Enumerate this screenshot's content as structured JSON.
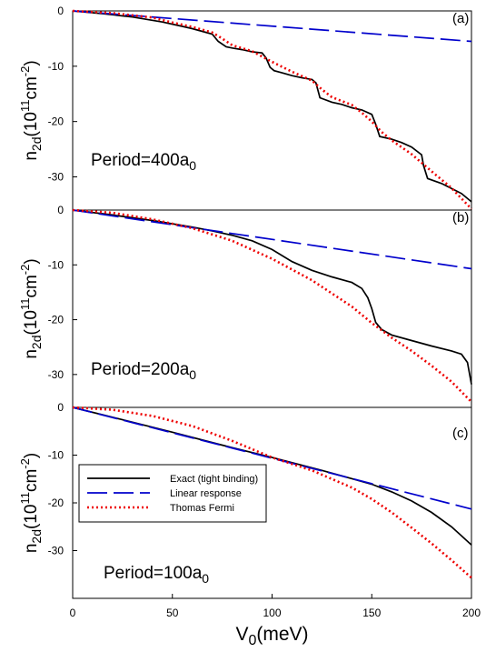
{
  "chart_data": [
    {
      "type": "line",
      "panel_label": "(a)",
      "annotation": {
        "text": "Period=400a",
        "sub": "0"
      },
      "ylabel": {
        "main": "n",
        "sub": "2d",
        "paren": "(10",
        "sup": "11",
        "unit": "cm",
        "unit_sup": "-2",
        "close": ")"
      },
      "xlim": [
        0,
        200
      ],
      "ylim": [
        -36,
        0
      ],
      "yticks": [
        0,
        -10,
        -20,
        -30
      ],
      "ytick_labels": [
        "0",
        "-10",
        "-20",
        "-30"
      ],
      "series": [
        {
          "name": "Exact (tight binding)",
          "color": "#000000",
          "style": "solid",
          "x": [
            0,
            15,
            30,
            45,
            55,
            60,
            65,
            70,
            73,
            77,
            80,
            85,
            90,
            95,
            97,
            99,
            101,
            105,
            110,
            115,
            120,
            122,
            124,
            130,
            135,
            140,
            145,
            150,
            152,
            154,
            160,
            165,
            170,
            175,
            176,
            178,
            185,
            190,
            195,
            200
          ],
          "y": [
            0,
            -0.5,
            -1.1,
            -2.0,
            -2.8,
            -3.2,
            -3.7,
            -4.2,
            -5.5,
            -6.5,
            -6.7,
            -7.0,
            -7.4,
            -7.6,
            -8.5,
            -10.2,
            -10.8,
            -11.2,
            -11.7,
            -12.1,
            -12.4,
            -13.0,
            -15.7,
            -16.5,
            -16.9,
            -17.5,
            -17.9,
            -18.7,
            -20.5,
            -22.7,
            -23.2,
            -23.8,
            -24.6,
            -26.0,
            -28.0,
            -30.3,
            -31.2,
            -32.1,
            -33.0,
            -34.5
          ]
        },
        {
          "name": "Linear response",
          "color": "#0000cc",
          "style": "dashed",
          "x": [
            0,
            200
          ],
          "y": [
            0,
            -5.5
          ]
        },
        {
          "name": "Thomas Fermi",
          "color": "#ee0000",
          "style": "dotted",
          "x": [
            0,
            20,
            40,
            50,
            60,
            70,
            75,
            80,
            90,
            100,
            110,
            120,
            125,
            130,
            140,
            145,
            150,
            155,
            160,
            170,
            180,
            190,
            200
          ],
          "y": [
            0,
            -0.4,
            -1.2,
            -2.1,
            -2.9,
            -3.9,
            -5.0,
            -6.2,
            -7.3,
            -9.2,
            -11.0,
            -12.6,
            -14.2,
            -15.6,
            -17.0,
            -18.4,
            -20.0,
            -21.9,
            -23.4,
            -25.9,
            -29.0,
            -32.0,
            -35.8
          ]
        }
      ]
    },
    {
      "type": "line",
      "panel_label": "(b)",
      "annotation": {
        "text": "Period=200a",
        "sub": "0"
      },
      "ylabel": {
        "main": "n",
        "sub": "2d",
        "paren": "(10",
        "sup": "11",
        "unit": "cm",
        "unit_sup": "-2",
        "close": ")"
      },
      "xlim": [
        0,
        200
      ],
      "ylim": [
        -36,
        0
      ],
      "yticks": [
        0,
        -10,
        -20,
        -30
      ],
      "ytick_labels": [
        "0",
        "-10",
        "-20",
        "-30"
      ],
      "series": [
        {
          "name": "Exact (tight binding)",
          "color": "#000000",
          "style": "solid",
          "x": [
            0,
            20,
            40,
            60,
            70,
            80,
            90,
            100,
            110,
            120,
            130,
            140,
            145,
            148,
            150,
            152,
            155,
            160,
            170,
            180,
            190,
            195,
            198,
            200
          ],
          "y": [
            0,
            -0.9,
            -1.9,
            -3.1,
            -3.8,
            -4.6,
            -5.6,
            -7.2,
            -9.4,
            -11.0,
            -12.2,
            -13.2,
            -14.3,
            -16.0,
            -18.0,
            -20.5,
            -21.8,
            -22.8,
            -23.8,
            -24.8,
            -25.7,
            -26.3,
            -27.8,
            -31.8
          ]
        },
        {
          "name": "Linear response",
          "color": "#0000cc",
          "style": "dashed",
          "x": [
            0,
            200
          ],
          "y": [
            0,
            -10.7
          ]
        },
        {
          "name": "Thomas Fermi",
          "color": "#ee0000",
          "style": "dotted",
          "x": [
            0,
            20,
            40,
            60,
            80,
            100,
            120,
            140,
            150,
            160,
            170,
            180,
            190,
            200
          ],
          "y": [
            0,
            -0.5,
            -1.7,
            -3.3,
            -5.6,
            -8.9,
            -12.8,
            -17.6,
            -20.6,
            -23.3,
            -25.7,
            -28.4,
            -31.3,
            -35.0
          ]
        }
      ]
    },
    {
      "type": "line",
      "panel_label": "(c)",
      "annotation": {
        "text": "Period=100a",
        "sub": "0"
      },
      "ylabel": {
        "main": "n",
        "sub": "2d",
        "paren": "(10",
        "sup": "11",
        "unit": "cm",
        "unit_sup": "-2",
        "close": ")"
      },
      "xlabel": {
        "main": "V",
        "sub": "0",
        "unit": "(meV)"
      },
      "xlim": [
        0,
        200
      ],
      "ylim": [
        -40,
        0
      ],
      "xticks": [
        0,
        50,
        100,
        150,
        200
      ],
      "xtick_labels": [
        "0",
        "50",
        "100",
        "150",
        "200"
      ],
      "yticks": [
        0,
        -10,
        -20,
        -30
      ],
      "ytick_labels": [
        "0",
        "-10",
        "-20",
        "-30"
      ],
      "legend": {
        "placement": "left-center"
      },
      "series": [
        {
          "name": "Exact (tight binding)",
          "color": "#000000",
          "style": "solid",
          "x": [
            0,
            25,
            50,
            75,
            100,
            125,
            150,
            160,
            170,
            180,
            190,
            200
          ],
          "y": [
            0,
            -2.6,
            -5.2,
            -7.9,
            -10.5,
            -13.2,
            -16.1,
            -17.7,
            -19.6,
            -22.0,
            -25.0,
            -28.8
          ]
        },
        {
          "name": "Linear response",
          "color": "#0000cc",
          "style": "dashed",
          "x": [
            0,
            200
          ],
          "y": [
            0,
            -21.3
          ]
        },
        {
          "name": "Thomas Fermi",
          "color": "#ee0000",
          "style": "dotted",
          "x": [
            0,
            20,
            40,
            60,
            80,
            100,
            120,
            140,
            150,
            160,
            170,
            180,
            190,
            200
          ],
          "y": [
            0,
            -0.5,
            -1.8,
            -3.9,
            -7.0,
            -10.5,
            -13.2,
            -16.8,
            -19.2,
            -22.0,
            -25.2,
            -28.5,
            -32.0,
            -35.7
          ]
        }
      ]
    }
  ]
}
